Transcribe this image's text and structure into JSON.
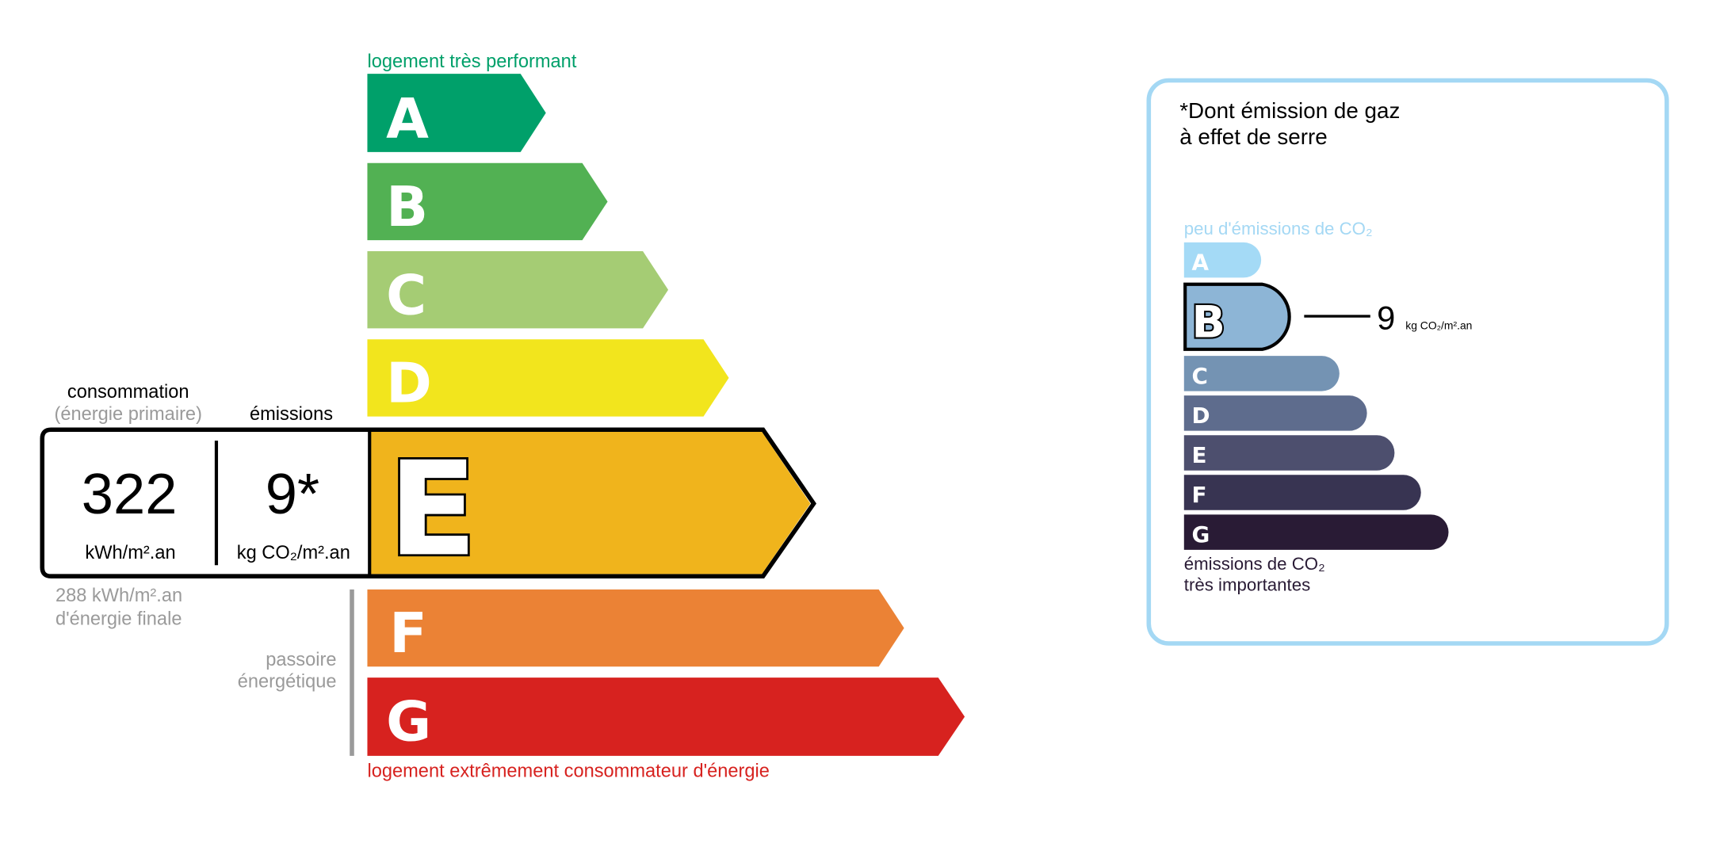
{
  "energy": {
    "top_label": "logement très performant",
    "bottom_label": "logement extrêmement consommateur d'énergie",
    "classes": [
      {
        "letter": "A",
        "color": "#00a06a"
      },
      {
        "letter": "B",
        "color": "#52b153"
      },
      {
        "letter": "C",
        "color": "#a5cc74"
      },
      {
        "letter": "D",
        "color": "#f2e51d"
      },
      {
        "letter": "E",
        "color": "#f0b41c"
      },
      {
        "letter": "F",
        "color": "#eb8235"
      },
      {
        "letter": "G",
        "color": "#d7221f"
      }
    ],
    "current_class": "E",
    "consumption_label": "consommation",
    "consumption_sublabel": "(énergie primaire)",
    "emissions_label": "émissions",
    "consumption_value": "322",
    "consumption_unit": "kWh/m².an",
    "emissions_value": "9*",
    "emissions_unit": "kg CO₂/m².an",
    "final_energy_value": "288 kWh/m².an",
    "final_energy_label": "d'énergie finale",
    "passoire_line1": "passoire",
    "passoire_line2": "énergétique"
  },
  "ghg": {
    "title_line1": "*Dont émission de gaz",
    "title_line2": "à effet de serre",
    "top_label": "peu d'émissions de CO₂",
    "bottom_label_line1": "émissions de CO₂",
    "bottom_label_line2": "très importantes",
    "classes": [
      {
        "letter": "A",
        "color": "#a4daf6"
      },
      {
        "letter": "B",
        "color": "#8db5d6"
      },
      {
        "letter": "C",
        "color": "#7493b3"
      },
      {
        "letter": "D",
        "color": "#5e6c8d"
      },
      {
        "letter": "E",
        "color": "#4d4f6e"
      },
      {
        "letter": "F",
        "color": "#383452"
      },
      {
        "letter": "G",
        "color": "#291b35"
      }
    ],
    "current_class": "B",
    "value": "9",
    "unit": "kg CO₂/m².an",
    "border_color": "#a4d8f4"
  }
}
